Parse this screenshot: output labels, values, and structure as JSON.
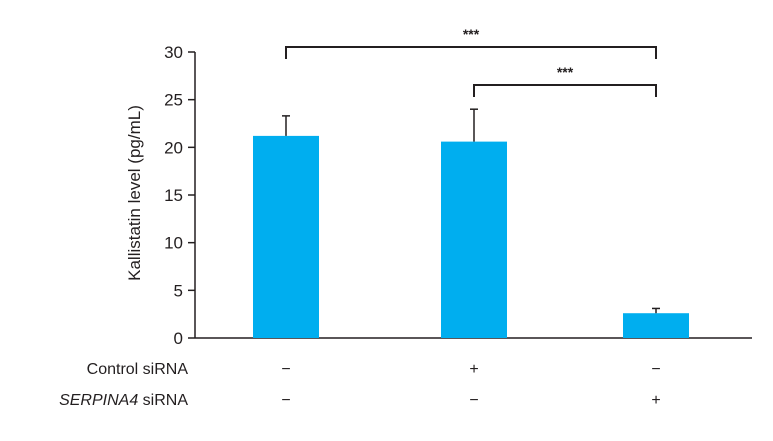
{
  "chart_data": {
    "type": "bar",
    "title": "",
    "xlabel": "",
    "ylabel": "Kallistatin level (pg/mL)",
    "ylim": [
      0,
      30
    ],
    "yticks": [
      0,
      5,
      10,
      15,
      20,
      25,
      30
    ],
    "grid": false,
    "legend": "none",
    "bar_color": "#00AEEF",
    "bars": [
      {
        "value": 21.2,
        "error": 2.1
      },
      {
        "value": 20.6,
        "error": 3.4
      },
      {
        "value": 2.6,
        "error": 0.5
      }
    ],
    "condition_rows": [
      {
        "label_italic": "",
        "label_rest": "Control siRNA",
        "marks": [
          "−",
          "+",
          "−"
        ]
      },
      {
        "label_italic": "SERPINA4",
        "label_rest": " siRNA",
        "marks": [
          "−",
          "−",
          "+"
        ]
      }
    ],
    "significance": [
      {
        "from": 0,
        "to": 2,
        "label": "***"
      },
      {
        "from": 1,
        "to": 2,
        "label": "***"
      }
    ]
  }
}
